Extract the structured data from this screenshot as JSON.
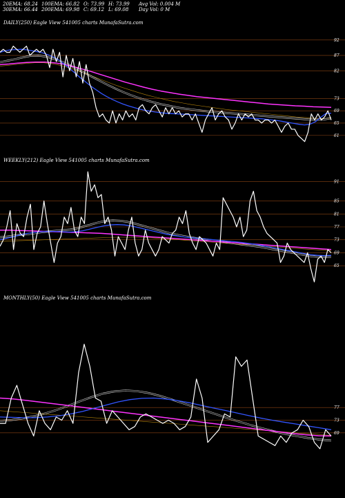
{
  "header": {
    "stats": [
      {
        "text": "20EMA: 68.24",
        "col": 0,
        "row": 0
      },
      {
        "text": "100EMA: 66.82",
        "col": 1,
        "row": 0
      },
      {
        "text": "O: 73.99",
        "col": 2,
        "row": 0
      },
      {
        "text": "H: 73.99",
        "col": 3,
        "row": 0
      },
      {
        "text": "Avg Vol: 0.004 M",
        "col": 4,
        "row": 0
      },
      {
        "text": "30EMA: 66.44",
        "col": 0,
        "row": 1
      },
      {
        "text": "200EMA: 69.98",
        "col": 1,
        "row": 1
      },
      {
        "text": "C: 69.12",
        "col": 2,
        "row": 1
      },
      {
        "text": "L: 69.08",
        "col": 3,
        "row": 1
      },
      {
        "text": "Day Vol: 0  M",
        "col": 4,
        "row": 1
      }
    ]
  },
  "colors": {
    "background": "#000000",
    "price": "#ffffff",
    "ema_blue": "#3355ff",
    "ema_magenta": "#ff33ff",
    "ema_white": "#dddddd",
    "ema_brown": "#b8860b",
    "grid": "#8b4513"
  },
  "chart_data": [
    {
      "type": "line",
      "label": "DAILY(250) Eagle  View  541005 charts MunafaSutra.com",
      "ylim": [
        56,
        96
      ],
      "y_ticks": [
        92,
        87,
        82,
        73,
        69,
        65,
        61
      ],
      "series": [
        {
          "role": "price",
          "values": [
            88,
            89,
            88,
            88,
            90,
            89,
            88,
            89,
            90,
            87,
            88,
            89,
            88,
            89,
            87,
            83,
            89,
            85,
            88,
            80,
            87,
            82,
            86,
            80,
            85,
            78,
            84,
            78,
            75,
            70,
            67,
            68,
            66,
            65,
            69,
            65,
            68,
            66,
            69,
            67,
            68,
            66,
            70,
            71,
            69,
            68,
            70,
            71,
            69,
            67,
            70,
            68,
            70,
            68,
            69,
            67,
            68,
            68,
            66,
            68,
            65,
            62,
            66,
            68,
            70,
            66,
            68,
            69,
            67,
            66,
            63,
            65,
            68,
            66,
            68,
            67,
            68,
            66,
            66,
            65,
            66,
            66,
            65,
            66,
            64,
            62,
            64,
            65,
            63,
            63,
            61,
            60,
            59,
            62,
            68,
            66,
            68,
            66,
            67,
            69,
            66
          ]
        },
        {
          "role": "ema_blue",
          "values": [
            88,
            88.5,
            88.8,
            88.9,
            89,
            88.8,
            88.5,
            88.2,
            87.8,
            87.2,
            86.5,
            85.5,
            84.2,
            82.8,
            81.3,
            79.8,
            78.4,
            77,
            75.8,
            74.6,
            73.6,
            72.7,
            71.9,
            71.2,
            70.6,
            70.1,
            69.6,
            69.2,
            68.9,
            68.6,
            68.4,
            68.2,
            68.1,
            68,
            67.9,
            67.8,
            67.7,
            67.6,
            67.5,
            67.4,
            67.3,
            67.2,
            67.1,
            67,
            66.9,
            66.8,
            66.7,
            66.6,
            66.5,
            66.4,
            66.2,
            66,
            65.8,
            65.5,
            65.2,
            64.9,
            64.6,
            64.4,
            64.6,
            65.4,
            66.8,
            68.1,
            68.2
          ]
        },
        {
          "role": "ema_magenta",
          "values": [
            84,
            84.2,
            84.5,
            84.7,
            84.8,
            84.8,
            84.6,
            84.2,
            83.5,
            82.7,
            81.9,
            81,
            80.1,
            79.2,
            78.3,
            77.5,
            76.7,
            76,
            75.4,
            74.9,
            74.4,
            74,
            73.6,
            73.3,
            73,
            72.7,
            72.4,
            72.1,
            71.8,
            71.5,
            71.2,
            71,
            70.8,
            70.6,
            70.5,
            70.3,
            70.2,
            70.1
          ]
        },
        {
          "role": "ema_white",
          "values": [
            85,
            85.5,
            86,
            86.6,
            87.1,
            87.2,
            86.8,
            86.1,
            85.2,
            84.1,
            82.8,
            81.5,
            80.2,
            78.9,
            77.6,
            76.4,
            75.3,
            74.3,
            73.4,
            72.6,
            71.9,
            71.3,
            70.8,
            70.3,
            69.9,
            69.6,
            69.3,
            69,
            68.8,
            68.6,
            68.4,
            68.2,
            68,
            67.8,
            67.6,
            67.4,
            67.2,
            67,
            66.8,
            66.6,
            66.4,
            66.3,
            66.4,
            66.8
          ]
        },
        {
          "role": "ema_brown",
          "values": [
            83.5,
            83.8,
            84.1,
            84.4,
            84.6,
            84.6,
            84.3,
            83.7,
            82.9,
            81.9,
            80.9,
            79.8,
            78.7,
            77.6,
            76.6,
            75.7,
            74.8,
            74,
            73.3,
            72.6,
            72,
            71.5,
            71,
            70.6,
            70.2,
            69.8,
            69.4,
            69.1,
            68.8,
            68.5,
            68.2,
            67.9,
            67.6,
            67.3,
            67,
            66.8,
            66.6,
            66.5,
            66.6
          ]
        }
      ]
    },
    {
      "type": "line",
      "label": "WEEKLY(212) Eagle  View  541005 charts MunafaSutra.com",
      "ylim": [
        58,
        96
      ],
      "y_ticks": [
        91,
        85,
        81,
        77,
        73,
        69,
        65
      ],
      "series": [
        {
          "role": "price",
          "values": [
            71,
            73,
            77,
            82,
            70,
            78,
            75,
            74,
            80,
            84,
            70,
            75,
            77,
            85,
            78,
            72,
            66,
            72,
            74,
            80,
            78,
            83,
            76,
            74,
            80,
            78,
            94,
            88,
            90,
            86,
            87,
            78,
            80,
            76,
            68,
            74,
            72,
            70,
            76,
            80,
            72,
            68,
            70,
            76,
            72,
            70,
            68,
            70,
            74,
            73,
            72,
            75,
            76,
            80,
            78,
            82,
            75,
            72,
            70,
            74,
            73,
            72,
            70,
            68,
            72,
            70,
            86,
            84,
            82,
            80,
            77,
            80,
            74,
            76,
            85,
            88,
            82,
            80,
            77,
            75,
            74,
            73,
            72,
            66,
            68,
            72,
            70,
            69,
            68,
            67,
            66,
            69,
            64,
            60,
            67,
            68,
            66,
            70,
            69
          ]
        },
        {
          "role": "ema_blue",
          "values": [
            73,
            73.5,
            74,
            74.6,
            75,
            75.3,
            75.5,
            75.6,
            75.6,
            75.5,
            75.4,
            75.5,
            75.8,
            76.3,
            76.8,
            77.3,
            77.6,
            77.7,
            77.6,
            77.3,
            76.8,
            76.3,
            75.8,
            75.3,
            74.8,
            74.4,
            74.1,
            73.8,
            73.6,
            73.4,
            73.2,
            73,
            72.8,
            72.6,
            72.4,
            72.2,
            71.9,
            71.6,
            71.2,
            70.8,
            70.4,
            70,
            69.6,
            69.2,
            68.8,
            68.4,
            68.2,
            68.1,
            68.2
          ]
        },
        {
          "role": "ema_magenta",
          "values": [
            76,
            76,
            75.9,
            75.8,
            75.7,
            75.6,
            75.5,
            75.4,
            75.3,
            75.2,
            75.1,
            75,
            74.8,
            74.6,
            74.4,
            74.2,
            74,
            73.8,
            73.6,
            73.4,
            73.2,
            73,
            72.8,
            72.6,
            72.4,
            72.2,
            72,
            71.8,
            71.6,
            71.4,
            71.2,
            71,
            70.8,
            70.6,
            70.4,
            70.2,
            70
          ]
        },
        {
          "role": "ema_white",
          "values": [
            74,
            74.2,
            74.5,
            74.8,
            75,
            75.3,
            75.6,
            75.8,
            76,
            76.2,
            76.4,
            76.8,
            77.4,
            78,
            78.6,
            79,
            79.2,
            79.1,
            78.8,
            78.3,
            77.7,
            77.1,
            76.5,
            75.9,
            75.3,
            74.8,
            74.4,
            74,
            73.7,
            73.4,
            73.1,
            72.8,
            72.5,
            72.2,
            71.9,
            71.6,
            71.3,
            71,
            70.6,
            70.2,
            69.8,
            69.4,
            69,
            68.6,
            68.2,
            68,
            67.9,
            68
          ]
        },
        {
          "role": "ema_brown",
          "values": [
            72.5,
            72.6,
            72.7,
            72.8,
            72.9,
            73,
            73.1,
            73.2,
            73.3,
            73.4,
            73.5,
            73.6,
            73.7,
            73.8,
            73.8,
            73.8,
            73.7,
            73.6,
            73.4,
            73.2,
            73,
            72.8,
            72.6,
            72.4,
            72.2,
            72,
            71.8,
            71.6,
            71.4,
            71.2,
            71,
            70.8,
            70.6,
            70.4,
            70.2,
            70,
            69.8,
            69.6
          ]
        }
      ]
    },
    {
      "type": "line",
      "label": "MONTHLY(50) Eagle  View  541005 charts MunafaSutra.com",
      "ylim": [
        55,
        110
      ],
      "y_ticks": [
        77,
        73,
        69
      ],
      "series": [
        {
          "role": "price",
          "values": [
            72,
            72,
            80,
            84,
            78,
            72,
            68,
            76,
            72,
            70,
            74,
            73,
            76,
            72,
            88,
            97,
            90,
            80,
            79,
            72,
            76,
            74,
            72,
            70,
            71,
            74,
            75,
            74,
            73,
            72,
            73,
            72,
            70,
            71,
            74,
            86,
            80,
            66,
            68,
            70,
            75,
            74,
            93,
            90,
            92,
            80,
            68,
            67,
            66,
            65,
            68,
            66,
            69,
            70,
            73,
            71,
            66,
            64,
            70,
            68
          ]
        },
        {
          "role": "ema_blue",
          "values": [
            74,
            73.9,
            73.8,
            73.8,
            74,
            74.4,
            75,
            75.8,
            76.8,
            77.8,
            78.8,
            79.5,
            79.9,
            80,
            79.7,
            79.2,
            78.5,
            77.7,
            76.9,
            76.1,
            75.3,
            74.5,
            73.7,
            73,
            72.4,
            71.8,
            71.2,
            70.6,
            70
          ]
        },
        {
          "role": "ema_magenta",
          "values": [
            80,
            79.7,
            79.3,
            78.8,
            78.3,
            77.8,
            77.3,
            76.8,
            76.3,
            75.8,
            75.3,
            74.8,
            74.3,
            73.8,
            73.3,
            72.8,
            72.3,
            71.8,
            71.3,
            70.8,
            70.3,
            69.8,
            69.3,
            68.8,
            68.4,
            68.1,
            68
          ]
        },
        {
          "role": "ema_white",
          "values": [
            73,
            73.3,
            73.8,
            74.5,
            75.4,
            76.5,
            77.8,
            79.2,
            80.5,
            81.6,
            82.3,
            82.6,
            82.4,
            81.8,
            80.9,
            79.8,
            78.6,
            77.4,
            76.2,
            75,
            73.8,
            72.7,
            71.6,
            70.6,
            69.7,
            68.9,
            68.2,
            67.6,
            67.1,
            66.8
          ]
        },
        {
          "role": "ema_brown",
          "values": [
            76,
            75.7,
            75.4,
            75.1,
            74.8,
            74.5,
            74.2,
            73.9,
            73.6,
            73.3,
            73,
            72.7,
            72.4,
            72.1,
            71.8,
            71.5,
            71.2,
            70.9,
            70.6,
            70.3,
            70,
            69.7,
            69.4,
            69.1,
            68.8,
            68.5,
            68.2
          ]
        }
      ]
    }
  ]
}
